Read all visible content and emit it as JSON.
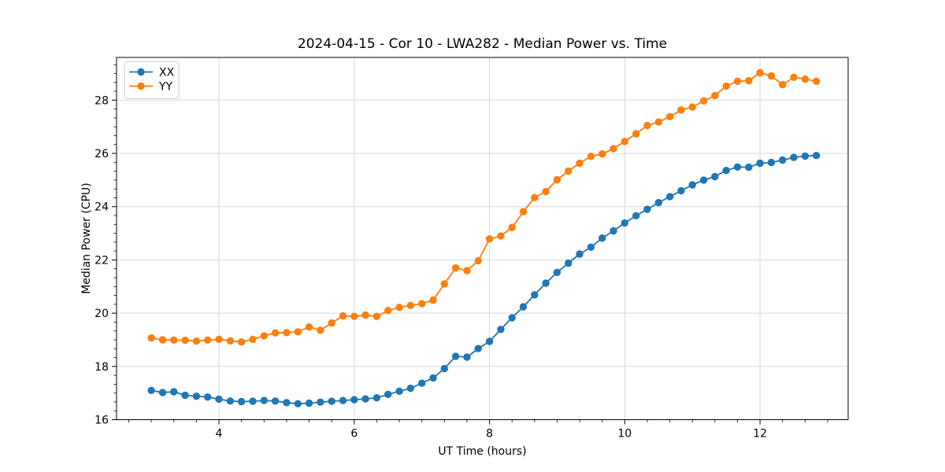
{
  "chart_data": {
    "type": "line",
    "title": "2024-04-15 - Cor 10 - LWA282 - Median Power vs. Time",
    "xlabel": "UT Time (hours)",
    "ylabel": "Median Power (CPU)",
    "xlim": [
      2.486,
      13.303
    ],
    "ylim": [
      16.0,
      29.605
    ],
    "xticks": [
      4,
      6,
      8,
      10,
      12
    ],
    "yticks": [
      16,
      18,
      20,
      22,
      24,
      26,
      28
    ],
    "minor_ticks_per_major": 6,
    "grid": true,
    "legend_position": "upper left",
    "x": [
      3,
      3.167,
      3.333,
      3.5,
      3.667,
      3.833,
      4,
      4.167,
      4.333,
      4.5,
      4.667,
      4.833,
      5,
      5.167,
      5.333,
      5.5,
      5.667,
      5.833,
      6,
      6.167,
      6.333,
      6.5,
      6.667,
      6.833,
      7,
      7.167,
      7.333,
      7.5,
      7.667,
      7.833,
      8,
      8.167,
      8.333,
      8.5,
      8.667,
      8.833,
      9,
      9.167,
      9.333,
      9.5,
      9.667,
      9.833,
      10,
      10.167,
      10.333,
      10.5,
      10.667,
      10.833,
      11,
      11.167,
      11.333,
      11.5,
      11.667,
      11.833,
      12,
      12.167,
      12.333,
      12.5,
      12.667,
      12.833
    ],
    "series": [
      {
        "name": "XX",
        "color": "#1f77b4",
        "values": [
          17.1,
          17.02,
          17.05,
          16.92,
          16.88,
          16.85,
          16.77,
          16.7,
          16.68,
          16.69,
          16.72,
          16.7,
          16.64,
          16.6,
          16.62,
          16.66,
          16.69,
          16.72,
          16.75,
          16.78,
          16.82,
          16.95,
          17.07,
          17.18,
          17.37,
          17.57,
          17.92,
          18.38,
          18.35,
          18.67,
          18.94,
          19.39,
          19.83,
          20.24,
          20.69,
          21.13,
          21.53,
          21.88,
          22.22,
          22.48,
          22.82,
          23.09,
          23.39,
          23.66,
          23.9,
          24.15,
          24.38,
          24.6,
          24.82,
          25.0,
          25.13,
          25.36,
          25.49,
          25.48,
          25.63,
          25.66,
          25.75,
          25.85,
          25.9,
          25.92
        ]
      },
      {
        "name": "YY",
        "color": "#ff7f0e",
        "values": [
          19.07,
          19.0,
          18.99,
          18.98,
          18.95,
          18.99,
          19.02,
          18.96,
          18.92,
          19.02,
          19.15,
          19.26,
          19.27,
          19.3,
          19.48,
          19.36,
          19.63,
          19.9,
          19.88,
          19.93,
          19.88,
          20.1,
          20.22,
          20.29,
          20.36,
          20.49,
          21.1,
          21.7,
          21.6,
          21.97,
          22.79,
          22.9,
          23.22,
          23.81,
          24.34,
          24.57,
          25.01,
          25.34,
          25.63,
          25.89,
          25.98,
          26.18,
          26.45,
          26.74,
          27.05,
          27.18,
          27.38,
          27.63,
          27.74,
          27.97,
          28.17,
          28.53,
          28.71,
          28.73,
          29.03,
          28.91,
          28.58,
          28.86,
          28.79,
          28.71
        ]
      }
    ]
  },
  "styles": {
    "background": "#ffffff",
    "grid_color": "#d9d9d9",
    "spine_color": "#000000",
    "tick_color": "#000000",
    "text_color": "#000000",
    "legend_border": "#cccccc",
    "legend_background": "#ffffff"
  }
}
